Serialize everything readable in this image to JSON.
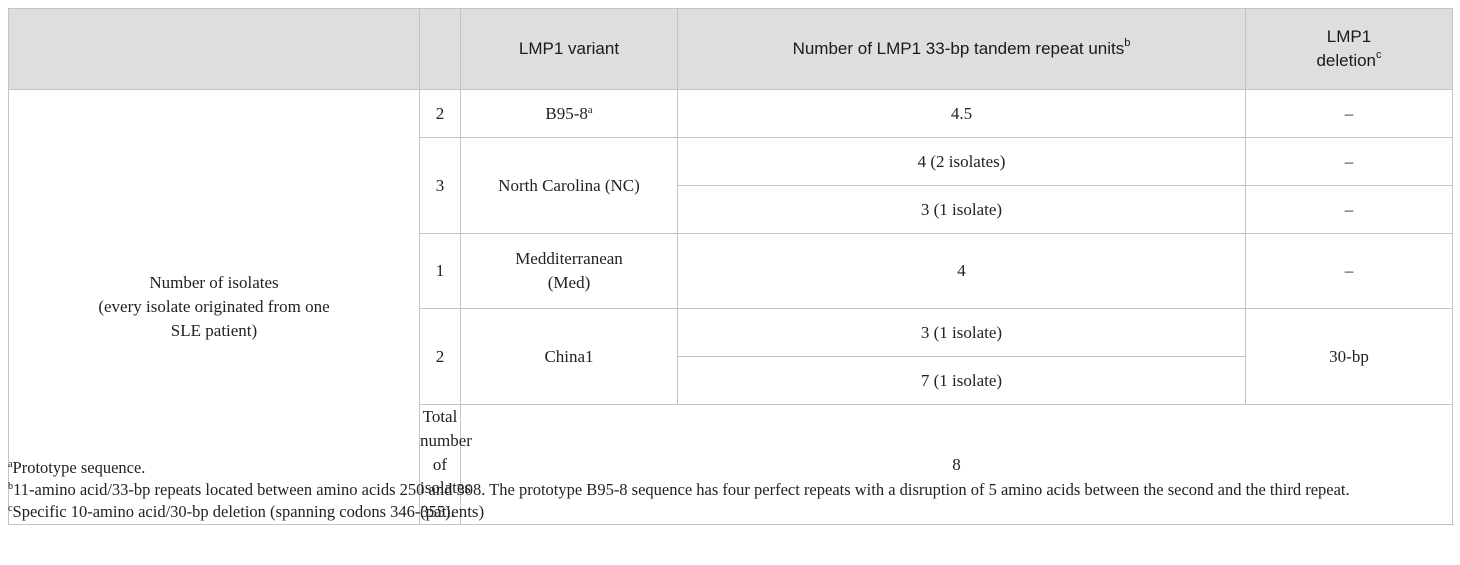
{
  "headers": {
    "col1": "",
    "col2": "",
    "col3": "LMP1 variant",
    "col4": "Number of LMP1 33-bp tandem repeat units",
    "col4_sup": "b",
    "col5_line1": "LMP1",
    "col5_line2": "deletion",
    "col5_sup": "c"
  },
  "left_label": {
    "line1": "Number of isolates",
    "line2": "(every isolate originated from one",
    "line3": "SLE patient)"
  },
  "rows": [
    {
      "count": "2",
      "variant": "B95-8",
      "variant_sup": "a",
      "repeats": "4.5",
      "deletion": "–"
    },
    {
      "count": "3",
      "variant": "North Carolina (NC)",
      "repeats": [
        "4 (2 isolates)",
        "3 (1 isolate)"
      ],
      "deletion": [
        "–",
        "–"
      ]
    },
    {
      "count": "1",
      "variant_line1": "Medditerranean",
      "variant_line2": "(Med)",
      "repeats": "4",
      "deletion": "–"
    },
    {
      "count": "2",
      "variant": "China1",
      "repeats": [
        "3 (1 isolate)",
        "7 (1 isolate)"
      ],
      "deletion": "30-bp"
    }
  ],
  "total": {
    "label": "Total number of isolates (patients)",
    "value": "8"
  },
  "footnotes": {
    "a_mark": "a",
    "a_text": "Prototype sequence.",
    "b_mark": "b",
    "b_text": "11-amino acid/33-bp repeats located between amino acids 250 and 308. The prototype B95-8 sequence has four perfect repeats with a disruption of 5 amino acids between the second and the third repeat.",
    "c_mark": "c",
    "c_text": "Specific 10-amino acid/30-bp deletion (spanning codons 346-355)."
  }
}
